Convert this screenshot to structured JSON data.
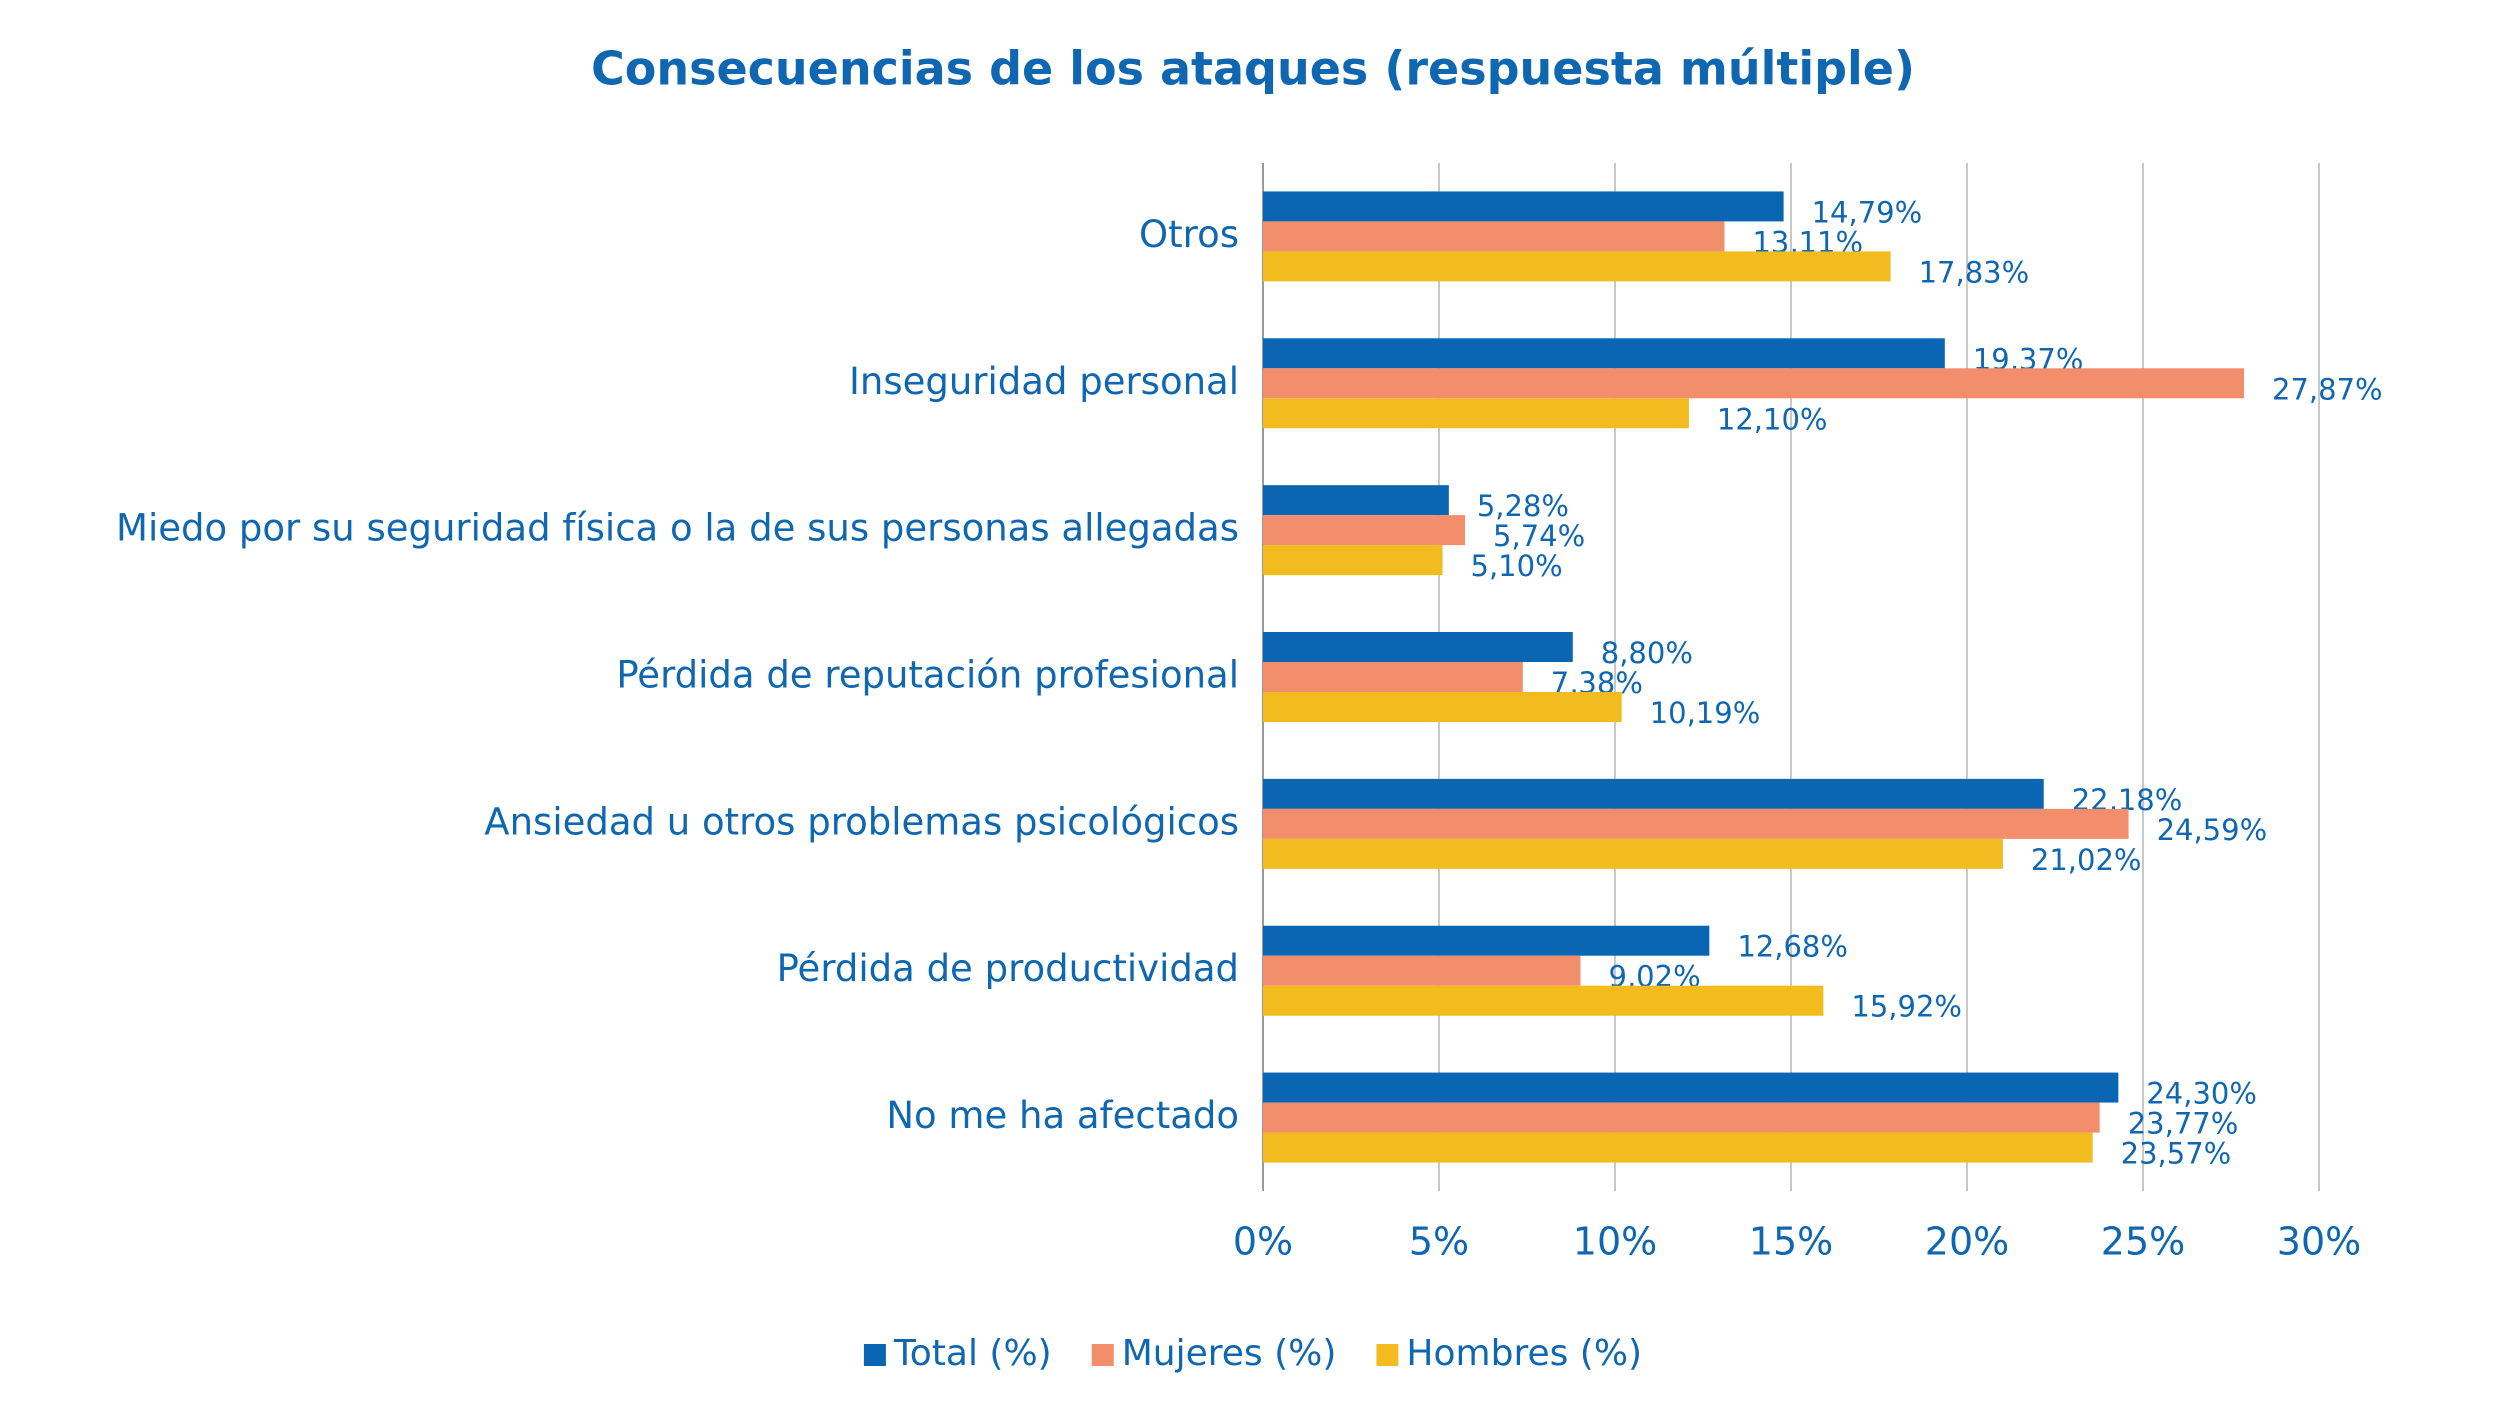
{
  "chart_data": {
    "type": "hbar",
    "title": "Consecuencias de los ataques (respuesta múltiple)",
    "categories": [
      "Otros",
      "Inseguridad personal",
      "Miedo por su seguridad física o la de sus personas allegadas",
      "Pérdida de reputación profesional",
      "Ansiedad u otros problemas psicológicos",
      "Pérdida de productividad",
      "No me ha afectado"
    ],
    "series": [
      {
        "name": "Total (%)",
        "color": "#0a66b3",
        "values": [
          14.79,
          19.37,
          5.28,
          8.8,
          22.18,
          12.68,
          24.3
        ],
        "value_labels": [
          "14,79%",
          "19,37%",
          "5,28%",
          "8,80%",
          "22,18%",
          "12,68%",
          "24,30%"
        ]
      },
      {
        "name": "Mujeres (%)",
        "color": "#f28e6c",
        "values": [
          13.11,
          27.87,
          5.74,
          7.38,
          24.59,
          9.02,
          23.77
        ],
        "value_labels": [
          "13,11%",
          "27,87%",
          "5,74%",
          "7,38%",
          "24,59%",
          "9,02%",
          "23,77%"
        ]
      },
      {
        "name": "Hombres (%)",
        "color": "#f2bc1f",
        "values": [
          17.83,
          12.1,
          5.1,
          10.19,
          21.02,
          15.92,
          23.57
        ],
        "value_labels": [
          "17,83%",
          "12,10%",
          "5,10%",
          "10,19%",
          "21,02%",
          "15,92%",
          "23,57%"
        ]
      }
    ],
    "xlim": [
      0,
      30
    ],
    "xticks": [
      {
        "value": 0,
        "label": "0%"
      },
      {
        "value": 5,
        "label": "5%"
      },
      {
        "value": 10,
        "label": "10%"
      },
      {
        "value": 15,
        "label": "15%"
      },
      {
        "value": 20,
        "label": "20%"
      },
      {
        "value": 25,
        "label": "25%"
      },
      {
        "value": 30,
        "label": "30%"
      }
    ],
    "grid": true,
    "legend": "bottom"
  }
}
